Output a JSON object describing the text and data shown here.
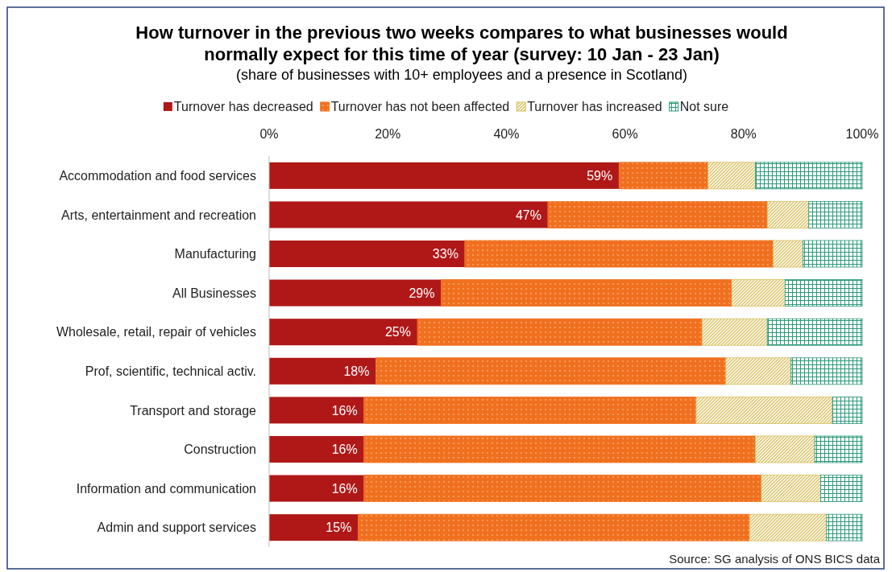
{
  "chart_data": {
    "type": "bar",
    "orientation": "horizontal",
    "stacked": true,
    "title": "How turnover in the previous two weeks compares to what businesses would normally expect for this time of year (survey: 10 Jan - 23 Jan)",
    "subtitle": "(share of businesses with 10+ employees and a presence in Scotland)",
    "annotations": [
      "Source: SG analysis of ONS BICS data"
    ],
    "categories": [
      "Accommodation and food services",
      "Arts, entertainment and recreation",
      "Manufacturing",
      "All Businesses",
      "Wholesale, retail, repair of vehicles",
      "Prof, scientific, technical activ.",
      "Transport and storage",
      "Construction",
      "Information and communication",
      "Admin and support services"
    ],
    "series": [
      {
        "name": "Turnover has decreased",
        "color": "#b01818",
        "values": [
          59,
          47,
          33,
          29,
          25,
          18,
          16,
          16,
          16,
          15
        ],
        "value_labels": [
          "59%",
          "47%",
          "33%",
          "29%",
          "25%",
          "18%",
          "16%",
          "16%",
          "16%",
          "15%"
        ]
      },
      {
        "name": "Turnover has not been affected",
        "color": "#f07020",
        "values": [
          15,
          37,
          52,
          49,
          48,
          59,
          56,
          66,
          67,
          66
        ]
      },
      {
        "name": "Turnover has increased",
        "color": "#d8c060",
        "values": [
          8,
          7,
          5,
          9,
          11,
          11,
          23,
          10,
          10,
          13
        ]
      },
      {
        "name": "Not sure",
        "color": "#2a9a7a",
        "values": [
          18,
          9,
          10,
          13,
          16,
          12,
          5,
          8,
          7,
          6
        ]
      }
    ],
    "xlim": [
      0,
      100
    ],
    "xticks": [
      {
        "value": 0,
        "label": "0%"
      },
      {
        "value": 20,
        "label": "20%"
      },
      {
        "value": 40,
        "label": "40%"
      },
      {
        "value": 60,
        "label": "60%"
      },
      {
        "value": 80,
        "label": "80%"
      },
      {
        "value": 100,
        "label": "100%"
      }
    ],
    "legend": "top"
  }
}
